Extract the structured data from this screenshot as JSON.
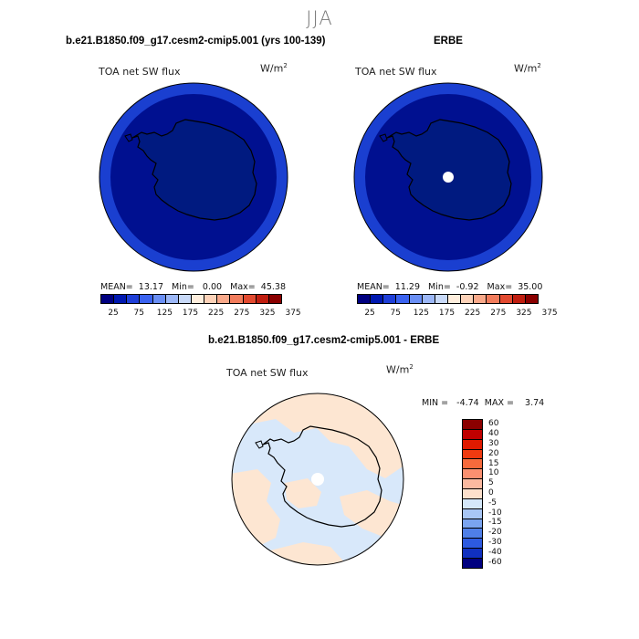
{
  "figure": {
    "season": "JJA"
  },
  "panels": {
    "model": {
      "title": "b.e21.B1850.f09_g17.cesm2-cmip5.001 (yrs 100-139)",
      "variable": "TOA net SW flux",
      "units": "W/m",
      "units_exp": "2",
      "stats": "MEAN=  13.17   Min=   0.00   Max=  45.38"
    },
    "obs": {
      "title": "ERBE",
      "variable": "TOA net SW flux",
      "units": "W/m",
      "units_exp": "2",
      "stats": "MEAN=  11.29   Min=  -0.92   Max=  35.00"
    },
    "diff": {
      "title": "b.e21.B1850.f09_g17.cesm2-cmip5.001 - ERBE",
      "variable": "TOA net SW flux",
      "units": "W/m",
      "units_exp": "2",
      "stats": "MIN =   -4.74  MAX =    3.74"
    }
  },
  "colorbars": {
    "absolute": {
      "labels": [
        "25",
        "75",
        "125",
        "175",
        "225",
        "275",
        "325",
        "375"
      ],
      "colors": [
        "#000080",
        "#0018b0",
        "#1f3fd8",
        "#3b63f0",
        "#6a8ff5",
        "#9cb7f7",
        "#c8d9f8",
        "#ffeedd",
        "#fdd2b8",
        "#f9a98a",
        "#f27c5c",
        "#e24a30",
        "#c01e10",
        "#8a0000"
      ]
    },
    "difference": {
      "labels": [
        "60",
        "40",
        "30",
        "20",
        "15",
        "10",
        "5",
        "0",
        "-5",
        "-10",
        "-15",
        "-20",
        "-30",
        "-40",
        "-60"
      ],
      "colors": [
        "#8b0000",
        "#c00000",
        "#e01a00",
        "#f03a10",
        "#f76a3c",
        "#fb9070",
        "#fbb9a0",
        "#fde0cc",
        "#d5e8fa",
        "#a8c6f5",
        "#7aa4f0",
        "#4f7fe8",
        "#2d5ae0",
        "#1030c0",
        "#000080"
      ]
    }
  }
}
